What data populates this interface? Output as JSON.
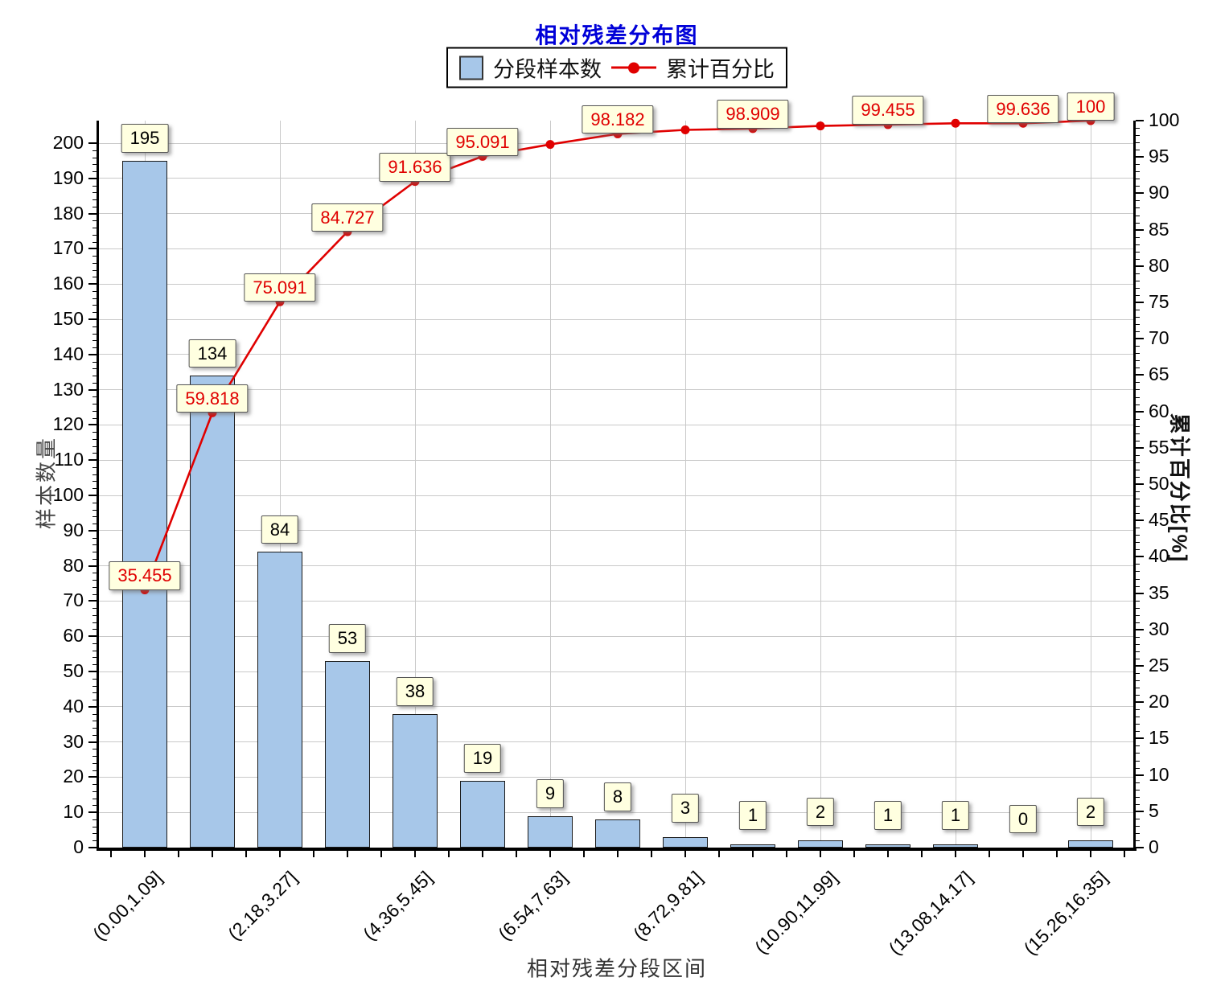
{
  "title": "相对残差分布图",
  "legend": {
    "bar_label": "分段样本数",
    "line_label": "累计百分比"
  },
  "axes": {
    "x_title": "相对残差分段区间",
    "y_left_title": "样本数量",
    "y_right_title": "累计百分比[%]",
    "y_left_ticks": [
      0,
      10,
      20,
      30,
      40,
      50,
      60,
      70,
      80,
      90,
      100,
      110,
      120,
      130,
      140,
      150,
      160,
      170,
      180,
      190,
      200
    ],
    "y_right_ticks": [
      0,
      5,
      10,
      15,
      20,
      25,
      30,
      35,
      40,
      45,
      50,
      55,
      60,
      65,
      70,
      75,
      80,
      85,
      90,
      95,
      100
    ]
  },
  "chart_data": {
    "type": "bar+line pareto",
    "n_bins": 15,
    "bin_width": 1.09,
    "x_tick_labels": [
      {
        "bin": 0,
        "label": "(0.00,1.09]"
      },
      {
        "bin": 2,
        "label": "(2.18,3.27]"
      },
      {
        "bin": 4,
        "label": "(4.36,5.45]"
      },
      {
        "bin": 6,
        "label": "(6.54,7.63]"
      },
      {
        "bin": 8,
        "label": "(8.72,9.81]"
      },
      {
        "bin": 10,
        "label": "(10.90,11.99]"
      },
      {
        "bin": 12,
        "label": "(13.08,14.17]"
      },
      {
        "bin": 14,
        "label": "(15.26,16.35]"
      }
    ],
    "series": [
      {
        "name": "分段样本数",
        "type": "bar",
        "axis": "left",
        "values": [
          195,
          134,
          84,
          53,
          38,
          19,
          9,
          8,
          3,
          1,
          2,
          1,
          1,
          0,
          2
        ]
      },
      {
        "name": "累计百分比",
        "type": "line",
        "axis": "right",
        "values": [
          35.455,
          59.818,
          75.091,
          84.727,
          91.636,
          95.091,
          96.727,
          98.182,
          98.727,
          98.909,
          99.273,
          99.455,
          99.636,
          99.636,
          100
        ],
        "point_labels": [
          "35.455",
          "59.818",
          "75.091",
          "84.727",
          "91.636",
          "95.091",
          null,
          "98.182",
          null,
          "98.909",
          null,
          "99.455",
          null,
          "99.636",
          "100"
        ]
      }
    ],
    "y_left": {
      "title": "样本数量",
      "min": 0,
      "max": 200,
      "tick_step": 10,
      "minor_step": 2
    },
    "y_right": {
      "title": "累计百分比[%]",
      "min": 0,
      "max": 100,
      "tick_step": 5,
      "minor_step": 1
    },
    "x_title": "相对残差分段区间",
    "grid": "on"
  },
  "colors": {
    "bar_fill": "#a7c7e9",
    "bar_border": "#1a1a1a",
    "line": "#e00000",
    "label_box_bg": "#ffffe0",
    "label_box_border": "#555555",
    "title": "#0000d8",
    "gridline": "#c9c9c9",
    "axis": "#000000"
  }
}
